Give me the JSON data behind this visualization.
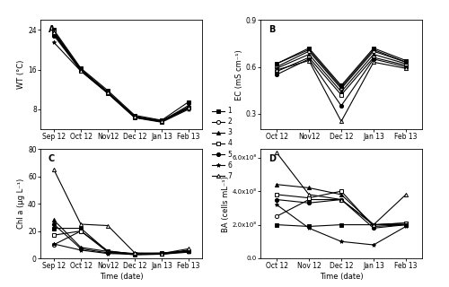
{
  "wt_x": [
    0,
    1,
    2,
    3,
    4,
    5
  ],
  "wt_labels": [
    "Sep 12",
    "Oct 12",
    "Nov12",
    "Dec 12",
    "Jan 13",
    "Feb 13"
  ],
  "wt_series": [
    [
      24.0,
      16.3,
      11.8,
      6.8,
      5.8,
      9.5
    ],
    [
      23.7,
      16.1,
      11.5,
      6.6,
      5.7,
      8.5
    ],
    [
      23.4,
      16.0,
      11.4,
      6.5,
      5.6,
      8.8
    ],
    [
      23.2,
      15.9,
      11.3,
      6.4,
      5.5,
      8.3
    ],
    [
      22.9,
      15.8,
      11.3,
      6.4,
      5.5,
      8.2
    ],
    [
      21.5,
      15.7,
      11.2,
      6.3,
      5.4,
      8.0
    ],
    [
      23.5,
      15.8,
      11.5,
      6.5,
      5.6,
      8.4
    ]
  ],
  "wt_ylim": [
    4,
    26
  ],
  "wt_yticks": [
    8,
    16,
    24
  ],
  "ec_x": [
    0,
    1,
    2,
    3,
    4
  ],
  "ec_labels": [
    "Oct 12",
    "Nov12",
    "Dec 12",
    "Jan 13",
    "Feb 13"
  ],
  "ec_series": [
    [
      0.62,
      0.72,
      0.48,
      0.72,
      0.64
    ],
    [
      0.6,
      0.7,
      0.46,
      0.7,
      0.63
    ],
    [
      0.59,
      0.68,
      0.44,
      0.68,
      0.62
    ],
    [
      0.57,
      0.66,
      0.42,
      0.66,
      0.61
    ],
    [
      0.55,
      0.65,
      0.35,
      0.65,
      0.6
    ],
    [
      0.62,
      0.71,
      0.47,
      0.71,
      0.63
    ],
    [
      0.58,
      0.64,
      0.25,
      0.63,
      0.59
    ]
  ],
  "ec_ylim": [
    0.2,
    0.9
  ],
  "ec_yticks": [
    0.3,
    0.6,
    0.9
  ],
  "chl_x": [
    0,
    1,
    2,
    3,
    4,
    5
  ],
  "chl_labels": [
    "Sep 12",
    "Oct 12",
    "Nov12",
    "Dec 12",
    "Jan 13",
    "Feb 13"
  ],
  "chl_series": [
    [
      22.0,
      22.0,
      5.0,
      3.5,
      4.0,
      5.0
    ],
    [
      10.0,
      20.0,
      5.5,
      3.0,
      3.5,
      5.5
    ],
    [
      28.0,
      8.0,
      5.0,
      3.0,
      3.0,
      6.0
    ],
    [
      17.0,
      20.0,
      4.5,
      2.5,
      3.0,
      5.0
    ],
    [
      25.0,
      7.0,
      4.0,
      3.5,
      3.5,
      5.5
    ],
    [
      10.5,
      6.0,
      3.5,
      3.0,
      3.0,
      4.5
    ],
    [
      65.0,
      25.0,
      24.0,
      4.0,
      3.5,
      7.0
    ]
  ],
  "chl_ylim": [
    0,
    80
  ],
  "chl_yticks": [
    0,
    20,
    40,
    60,
    80
  ],
  "ba_x": [
    0,
    1,
    2,
    3,
    4
  ],
  "ba_labels": [
    "Oct 12",
    "Nov 12",
    "Dec 12",
    "Jan 13",
    "Feb 13"
  ],
  "ba_series": [
    [
      200000000.0,
      190000000.0,
      200000000.0,
      200000000.0,
      210000000.0
    ],
    [
      250000000.0,
      350000000.0,
      350000000.0,
      200000000.0,
      210000000.0
    ],
    [
      440000000.0,
      420000000.0,
      380000000.0,
      200000000.0,
      200000000.0
    ],
    [
      380000000.0,
      360000000.0,
      400000000.0,
      190000000.0,
      200000000.0
    ],
    [
      350000000.0,
      330000000.0,
      350000000.0,
      180000000.0,
      200000000.0
    ],
    [
      320000000.0,
      180000000.0,
      100000000.0,
      80000000.0,
      190000000.0
    ],
    [
      630000000.0,
      380000000.0,
      350000000.0,
      200000000.0,
      380000000.0
    ]
  ],
  "ba_ylim": [
    0,
    650000000.0
  ],
  "ba_yticks": [
    0.0,
    200000000.0,
    400000000.0,
    600000000.0
  ],
  "ba_yticklabels": [
    "0.0",
    "2.0x10⁸",
    "4.0x10⁸",
    "6.0x10⁸"
  ],
  "markers": [
    "s",
    "o",
    "^",
    "s",
    "o",
    "*",
    "^"
  ],
  "fillstyles": [
    "full",
    "none",
    "full",
    "none",
    "full",
    "full",
    "none"
  ],
  "colors": [
    "black",
    "black",
    "black",
    "black",
    "black",
    "black",
    "black"
  ],
  "legend_labels": [
    "1",
    "2",
    "3",
    "4",
    "5",
    "6",
    "7"
  ]
}
